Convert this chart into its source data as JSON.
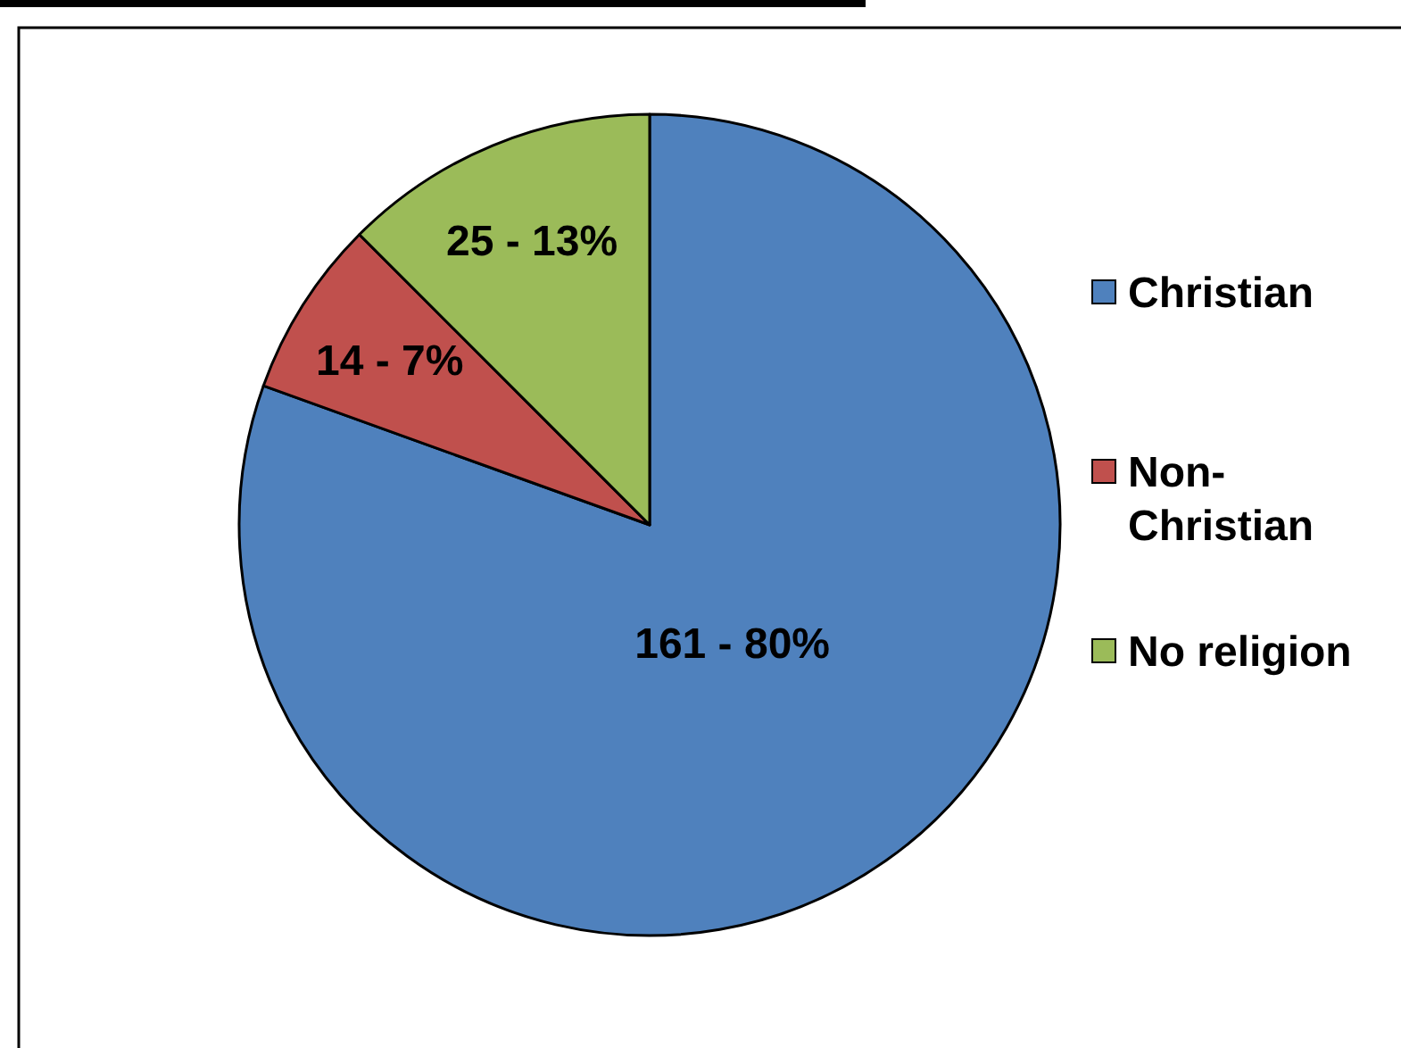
{
  "chart_data": {
    "type": "pie",
    "categories": [
      "Christian",
      "Non-Christian",
      "No religion"
    ],
    "values": [
      161,
      14,
      25
    ],
    "colors": [
      "#4f81bd",
      "#c0504d",
      "#9bbb59"
    ],
    "value_labels": [
      "161 - 80%",
      "14 - 7%",
      "25 - 13%"
    ],
    "legend": "right"
  }
}
